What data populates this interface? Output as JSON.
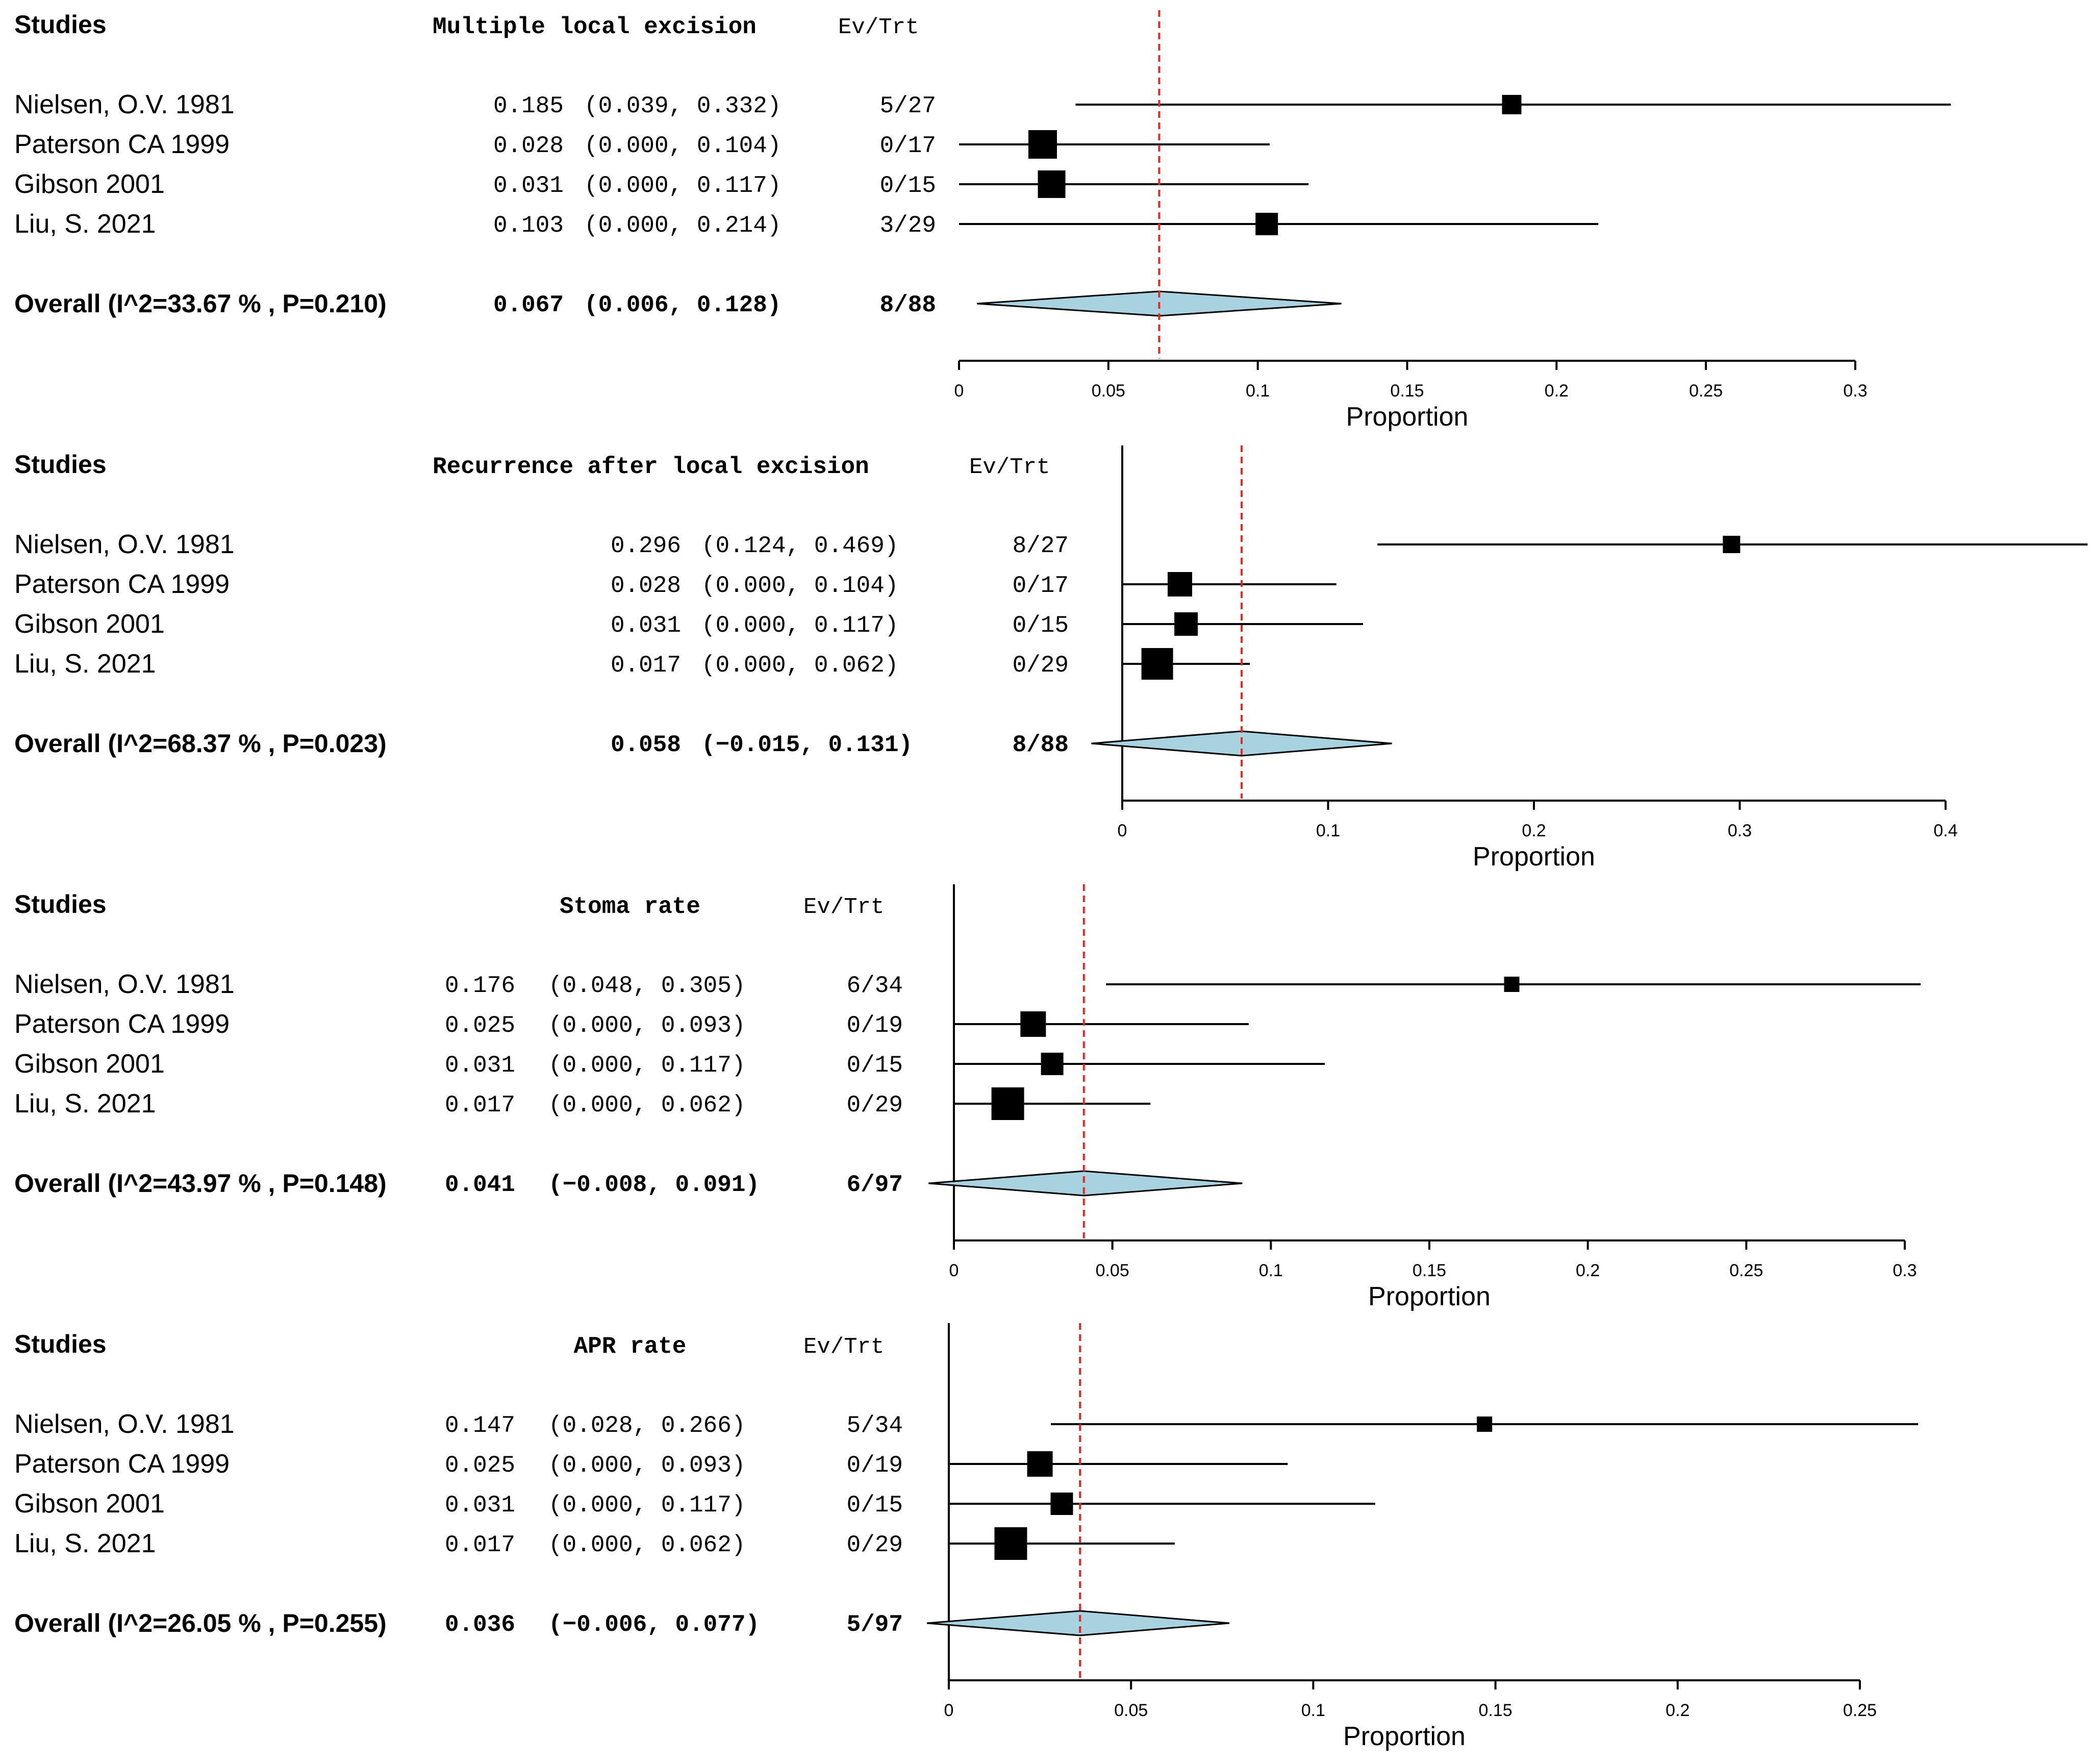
{
  "colors": {
    "reference_line": "#e8251f",
    "diamond_fill": "#a9d2e1",
    "marks": "#000000"
  },
  "chart_data": [
    {
      "type": "forest",
      "title": "Multiple local excision",
      "studies_header": "Studies",
      "evtrt_header": "Ev/Trt",
      "xlabel": "Proportion",
      "xlim": [
        0,
        0.3
      ],
      "ticks": [
        0,
        0.05,
        0.1,
        0.15,
        0.2,
        0.25,
        0.3
      ],
      "tick_labels": [
        "0",
        "0.05",
        "0.1",
        "0.15",
        "0.2",
        "0.25",
        "0.3"
      ],
      "reference_line": 0.067,
      "studies": [
        {
          "name": "Nielsen, O.V. 1981",
          "est": 0.185,
          "lo": 0.039,
          "hi": 0.332,
          "est_text": "0.185",
          "ci_text": "(0.039, 0.332)",
          "evtrt": "5/27",
          "weight": 0.15
        },
        {
          "name": "Paterson CA 1999",
          "est": 0.028,
          "lo": 0.0,
          "hi": 0.104,
          "est_text": "0.028",
          "ci_text": "(0.000, 0.104)",
          "evtrt": "0/17",
          "weight": 0.34
        },
        {
          "name": "Gibson 2001",
          "est": 0.031,
          "lo": 0.0,
          "hi": 0.117,
          "est_text": "0.031",
          "ci_text": "(0.000, 0.117)",
          "evtrt": "0/15",
          "weight": 0.3
        },
        {
          "name": "Liu, S. 2021",
          "est": 0.103,
          "lo": 0.0,
          "hi": 0.214,
          "est_text": "0.103",
          "ci_text": "(0.000, 0.214)",
          "evtrt": "3/29",
          "weight": 0.21
        }
      ],
      "overall": {
        "label": "Overall (I^2=33.67 % , P=0.210)",
        "est": 0.067,
        "lo": 0.006,
        "hi": 0.128,
        "est_text": "0.067",
        "ci_text": "(0.006, 0.128)",
        "evtrt": "8/88"
      }
    },
    {
      "type": "forest",
      "title": "Recurrence after local excision",
      "studies_header": "Studies",
      "evtrt_header": "Ev/Trt",
      "xlabel": "Proportion",
      "xlim": [
        0,
        0.4
      ],
      "ticks": [
        0,
        0.1,
        0.2,
        0.3,
        0.4
      ],
      "tick_labels": [
        "0",
        "0.1",
        "0.2",
        "0.3",
        "0.4"
      ],
      "reference_line": 0.058,
      "studies": [
        {
          "name": "Nielsen, O.V. 1981",
          "est": 0.296,
          "lo": 0.124,
          "hi": 0.469,
          "est_text": "0.296",
          "ci_text": "(0.124, 0.469)",
          "evtrt": "8/27",
          "weight": 0.12
        },
        {
          "name": "Paterson CA 1999",
          "est": 0.028,
          "lo": 0.0,
          "hi": 0.104,
          "est_text": "0.028",
          "ci_text": "(0.000, 0.104)",
          "evtrt": "0/17",
          "weight": 0.25
        },
        {
          "name": "Gibson 2001",
          "est": 0.031,
          "lo": 0.0,
          "hi": 0.117,
          "est_text": "0.031",
          "ci_text": "(0.000, 0.117)",
          "evtrt": "0/15",
          "weight": 0.22
        },
        {
          "name": "Liu, S. 2021",
          "est": 0.017,
          "lo": 0.0,
          "hi": 0.062,
          "est_text": "0.017",
          "ci_text": "(0.000, 0.062)",
          "evtrt": "0/29",
          "weight": 0.41
        }
      ],
      "overall": {
        "label": "Overall (I^2=68.37 % , P=0.023)",
        "est": 0.058,
        "lo": -0.015,
        "hi": 0.131,
        "est_text": "0.058",
        "ci_text": "(−0.015, 0.131)",
        "evtrt": "8/88"
      }
    },
    {
      "type": "forest",
      "title": "Stoma rate",
      "studies_header": "Studies",
      "evtrt_header": "Ev/Trt",
      "xlabel": "Proportion",
      "xlim": [
        0,
        0.3
      ],
      "ticks": [
        0,
        0.05,
        0.1,
        0.15,
        0.2,
        0.25,
        0.3
      ],
      "tick_labels": [
        "0",
        "0.05",
        "0.1",
        "0.15",
        "0.2",
        "0.25",
        "0.3"
      ],
      "reference_line": 0.041,
      "studies": [
        {
          "name": "Nielsen, O.V. 1981",
          "est": 0.176,
          "lo": 0.048,
          "hi": 0.305,
          "est_text": "0.176",
          "ci_text": "(0.048, 0.305)",
          "evtrt": "6/34",
          "weight": 0.1
        },
        {
          "name": "Paterson CA 1999",
          "est": 0.025,
          "lo": 0.0,
          "hi": 0.093,
          "est_text": "0.025",
          "ci_text": "(0.000, 0.093)",
          "evtrt": "0/19",
          "weight": 0.27
        },
        {
          "name": "Gibson 2001",
          "est": 0.031,
          "lo": 0.0,
          "hi": 0.117,
          "est_text": "0.031",
          "ci_text": "(0.000, 0.117)",
          "evtrt": "0/15",
          "weight": 0.2
        },
        {
          "name": "Liu, S. 2021",
          "est": 0.017,
          "lo": 0.0,
          "hi": 0.062,
          "est_text": "0.017",
          "ci_text": "(0.000, 0.062)",
          "evtrt": "0/29",
          "weight": 0.43
        }
      ],
      "overall": {
        "label": "Overall (I^2=43.97 % , P=0.148)",
        "est": 0.041,
        "lo": -0.008,
        "hi": 0.091,
        "est_text": "0.041",
        "ci_text": "(−0.008, 0.091)",
        "evtrt": "6/97"
      }
    },
    {
      "type": "forest",
      "title": "APR rate",
      "studies_header": "Studies",
      "evtrt_header": "Ev/Trt",
      "xlabel": "Proportion",
      "xlim": [
        0,
        0.25
      ],
      "ticks": [
        0,
        0.05,
        0.1,
        0.15,
        0.2,
        0.25
      ],
      "tick_labels": [
        "0",
        "0.05",
        "0.1",
        "0.15",
        "0.2",
        "0.25"
      ],
      "reference_line": 0.036,
      "studies": [
        {
          "name": "Nielsen, O.V. 1981",
          "est": 0.147,
          "lo": 0.028,
          "hi": 0.266,
          "est_text": "0.147",
          "ci_text": "(0.028, 0.266)",
          "evtrt": "5/34",
          "weight": 0.1
        },
        {
          "name": "Paterson CA 1999",
          "est": 0.025,
          "lo": 0.0,
          "hi": 0.093,
          "est_text": "0.025",
          "ci_text": "(0.000, 0.093)",
          "evtrt": "0/19",
          "weight": 0.27
        },
        {
          "name": "Gibson 2001",
          "est": 0.031,
          "lo": 0.0,
          "hi": 0.117,
          "est_text": "0.031",
          "ci_text": "(0.000, 0.117)",
          "evtrt": "0/15",
          "weight": 0.2
        },
        {
          "name": "Liu, S. 2021",
          "est": 0.017,
          "lo": 0.0,
          "hi": 0.062,
          "est_text": "0.017",
          "ci_text": "(0.000, 0.062)",
          "evtrt": "0/29",
          "weight": 0.43
        }
      ],
      "overall": {
        "label": "Overall (I^2=26.05 % , P=0.255)",
        "est": 0.036,
        "lo": -0.006,
        "hi": 0.077,
        "est_text": "0.036",
        "ci_text": "(−0.006, 0.077)",
        "evtrt": "5/97"
      }
    }
  ]
}
